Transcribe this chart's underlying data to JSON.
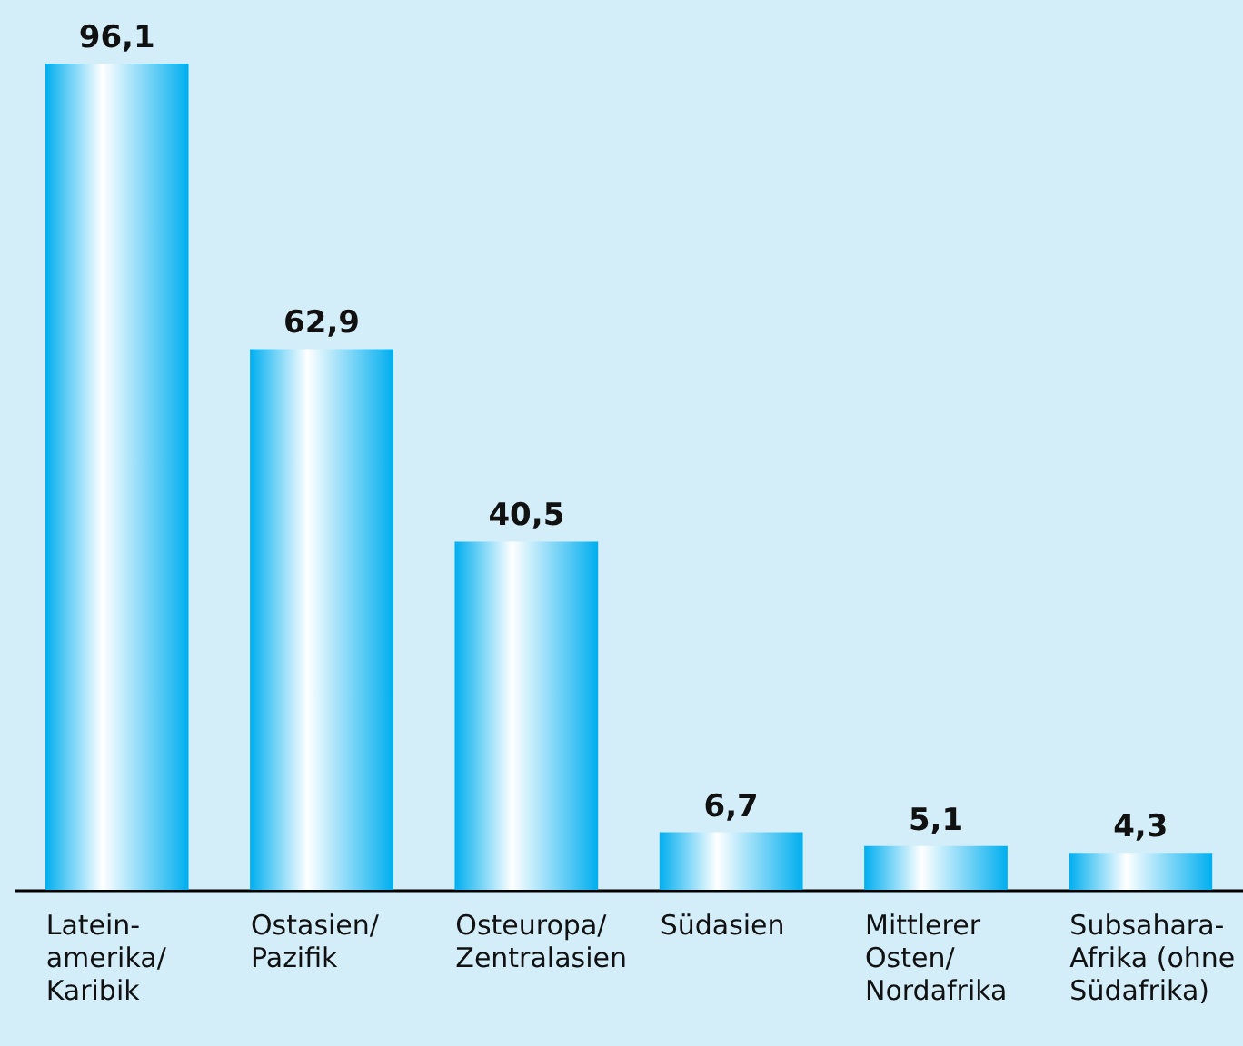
{
  "chart_data": {
    "type": "bar",
    "categories": [
      "Latein-\namerika/\nKaribik",
      "Ostasien/\nPazifik",
      "Osteuropa/\nZentralasien",
      "Südasien",
      "Mittlerer\nOsten/\nNordafrika",
      "Subsahara-\nAfrika (ohne\nSüdafrika)"
    ],
    "values": [
      96.1,
      62.9,
      40.5,
      6.7,
      5.1,
      4.3
    ],
    "value_labels": [
      "96,1",
      "62,9",
      "40,5",
      "6,7",
      "5,1",
      "4,3"
    ],
    "color": "#00aeef"
  }
}
